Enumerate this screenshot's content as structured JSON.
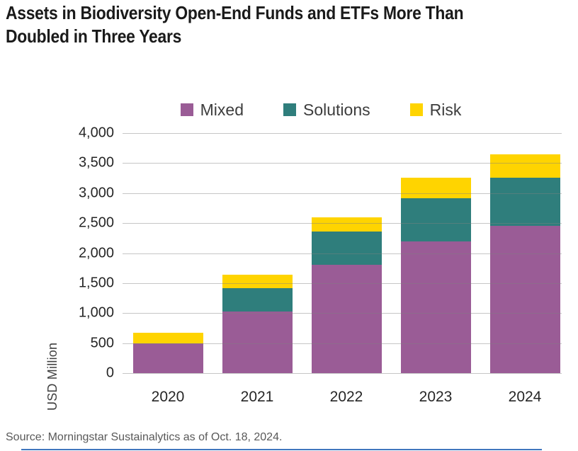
{
  "title_lines": [
    "Assets in Biodiversity Open-End Funds and ETFs More Than",
    "Doubled in Three Years"
  ],
  "source": "Source: Morningstar Sustainalytics as of Oct. 18, 2024.",
  "colors": {
    "mixed": "#9a5c96",
    "solutions": "#2f7e7c",
    "risk": "#ffd400",
    "gridline": "#c9c9c9",
    "bottom_rule": "#4076bd",
    "title_text": "#1a1a1a",
    "source_text": "#595959"
  },
  "chart_data": {
    "type": "bar",
    "stacked": true,
    "title": "Assets in Biodiversity Open-End Funds and ETFs More Than Doubled in Three Years",
    "categories": [
      "2020",
      "2021",
      "2022",
      "2023",
      "2024"
    ],
    "series": [
      {
        "name": "Mixed",
        "color": "#9a5c96",
        "values": [
          500,
          1030,
          1810,
          2190,
          2460
        ]
      },
      {
        "name": "Solutions",
        "color": "#2f7e7c",
        "values": [
          0,
          390,
          555,
          730,
          800
        ]
      },
      {
        "name": "Risk",
        "color": "#ffd400",
        "values": [
          170,
          220,
          235,
          340,
          390
        ]
      }
    ],
    "totals": [
      670,
      1640,
      2600,
      3260,
      3650
    ],
    "xlabel": "",
    "ylabel": "USD Million",
    "ylim": [
      0,
      4000
    ],
    "ytick_step": 500,
    "ytick_labels": [
      "0",
      "500",
      "1,000",
      "1,500",
      "2,000",
      "2,500",
      "3,000",
      "3,500",
      "4,000"
    ],
    "grid": true,
    "legend_position": "top"
  }
}
